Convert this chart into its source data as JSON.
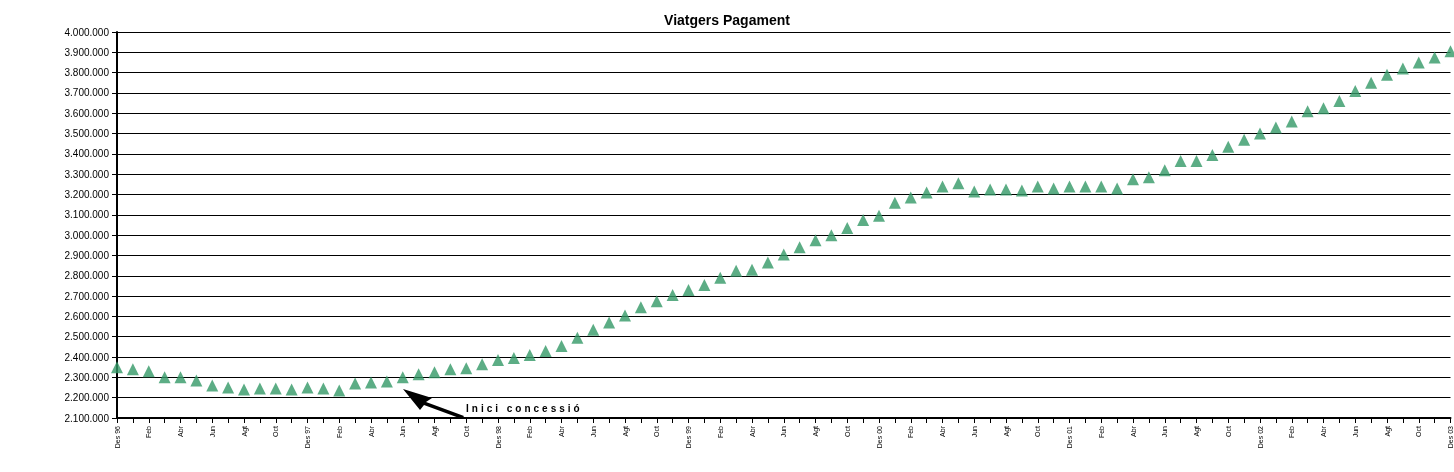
{
  "chart_data": {
    "type": "scatter",
    "title": "Viatgers Pagament",
    "categories": [
      "Des 96",
      null,
      "Feb",
      null,
      "Abr",
      null,
      "Jun",
      null,
      "Agt",
      null,
      "Oct",
      null,
      "Des 97",
      null,
      "Feb",
      null,
      "Abr",
      null,
      "Jun",
      null,
      "Agt",
      null,
      "Oct",
      null,
      "Des 98",
      null,
      "Feb",
      null,
      "Abr",
      null,
      "Jun",
      null,
      "Agt",
      null,
      "Oct",
      null,
      "Des 99",
      null,
      "Feb",
      null,
      "Abr",
      null,
      "Jun",
      null,
      "Agt",
      null,
      "Oct",
      null,
      "Des 00",
      null,
      "Feb",
      null,
      "Abr",
      null,
      "Jun",
      null,
      "Agt",
      null,
      "Oct",
      null,
      "Des 01",
      null,
      "Feb",
      null,
      "Abr",
      null,
      "Jun",
      null,
      "Agt",
      null,
      "Oct",
      null,
      "Des 02",
      null,
      "Feb",
      null,
      "Abr",
      null,
      "Jun",
      null,
      "Agt",
      null,
      "Oct",
      null,
      "Des 03"
    ],
    "series": [
      {
        "color": "#339966",
        "values": [
          2350000,
          2340000,
          2330000,
          2300000,
          2300000,
          2285000,
          2260000,
          2250000,
          2240000,
          2245000,
          2245000,
          2240000,
          2250000,
          2245000,
          2235000,
          2270000,
          2275000,
          2280000,
          2300000,
          2315000,
          2325000,
          2340000,
          2345000,
          2365000,
          2385000,
          2395000,
          2410000,
          2430000,
          2455000,
          2495000,
          2535000,
          2570000,
          2605000,
          2645000,
          2675000,
          2705000,
          2730000,
          2755000,
          2790000,
          2825000,
          2830000,
          2865000,
          2905000,
          2940000,
          2975000,
          3000000,
          3035000,
          3075000,
          3095000,
          3160000,
          3185000,
          3210000,
          3240000,
          3255000,
          3215000,
          3225000,
          3225000,
          3220000,
          3240000,
          3230000,
          3240000,
          3240000,
          3240000,
          3230000,
          3275000,
          3285000,
          3320000,
          3365000,
          3365000,
          3395000,
          3435000,
          3470000,
          3500000,
          3530000,
          3560000,
          3610000,
          3625000,
          3660000,
          3710000,
          3750000,
          3790000,
          3820000,
          3850000,
          3875000,
          3905000
        ]
      }
    ],
    "ylim": [
      2100000,
      4000000
    ],
    "yticks": [
      {
        "value": 2100000,
        "label": "2.100.000"
      },
      {
        "value": 2200000,
        "label": "2.200.000"
      },
      {
        "value": 2300000,
        "label": "2.300.000"
      },
      {
        "value": 2400000,
        "label": "2.400.000"
      },
      {
        "value": 2500000,
        "label": "2.500.000"
      },
      {
        "value": 2600000,
        "label": "2.600.000"
      },
      {
        "value": 2700000,
        "label": "2.700.000"
      },
      {
        "value": 2800000,
        "label": "2.800.000"
      },
      {
        "value": 2900000,
        "label": "2.900.000"
      },
      {
        "value": 3000000,
        "label": "3.000.000"
      },
      {
        "value": 3100000,
        "label": "3.100.000"
      },
      {
        "value": 3200000,
        "label": "3.200.000"
      },
      {
        "value": 3300000,
        "label": "3.300.000"
      },
      {
        "value": 3400000,
        "label": "3.400.000"
      },
      {
        "value": 3500000,
        "label": "3.500.000"
      },
      {
        "value": 3600000,
        "label": "3.600.000"
      },
      {
        "value": 3700000,
        "label": "3.700.000"
      },
      {
        "value": 3800000,
        "label": "3.800.000"
      },
      {
        "value": 3900000,
        "label": "3.900.000"
      },
      {
        "value": 4000000,
        "label": "4.000.000"
      }
    ],
    "grid": "y",
    "marker": "triangle",
    "annotations": [
      "Inici concessió"
    ]
  }
}
